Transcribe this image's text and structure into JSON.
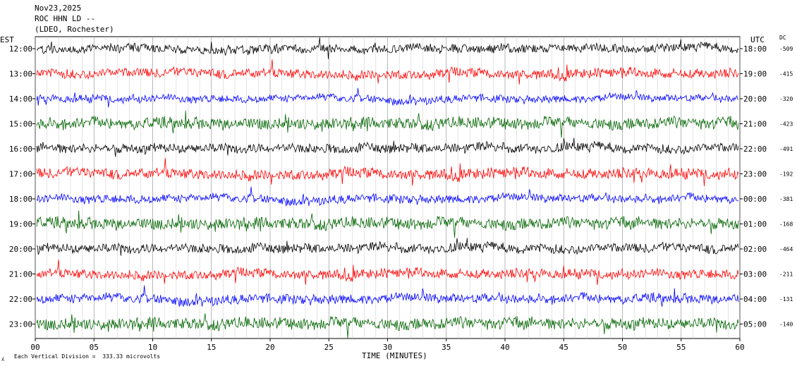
{
  "header": {
    "date": "Nov23,2025",
    "station": "ROC HHN LD --",
    "network": "(LDEO, Rochester)"
  },
  "left_axis_label": "EST",
  "right_axis_label": "UTC",
  "dc_label": "DC",
  "footer": {
    "xlabel": "TIME (MINUTES)",
    "scale_text": "Each Vertical Division =  333.33 microvolts",
    "corner_mark": "ʎ"
  },
  "chart_data": {
    "type": "line",
    "title": "",
    "xlabel": "TIME (MINUTES)",
    "ylabel": "",
    "x_range": [
      0,
      60
    ],
    "x_ticks": [
      "00",
      "05",
      "10",
      "15",
      "20",
      "25",
      "30",
      "35",
      "40",
      "45",
      "50",
      "55",
      "60"
    ],
    "trace_colors": [
      "#000000",
      "#ff0000",
      "#0000ff",
      "#006400"
    ],
    "series": [
      {
        "est": "12:00",
        "utc": "18:00",
        "dc": "-509",
        "amplitude": 8
      },
      {
        "est": "13:00",
        "utc": "19:00",
        "dc": "-415",
        "amplitude": 9
      },
      {
        "est": "14:00",
        "utc": "20:00",
        "dc": "-320",
        "amplitude": 7
      },
      {
        "est": "15:00",
        "utc": "21:00",
        "dc": "-423",
        "amplitude": 11
      },
      {
        "est": "16:00",
        "utc": "22:00",
        "dc": "-491",
        "amplitude": 9
      },
      {
        "est": "17:00",
        "utc": "23:00",
        "dc": "-192",
        "amplitude": 10
      },
      {
        "est": "18:00",
        "utc": "00:00",
        "dc": "-381",
        "amplitude": 8
      },
      {
        "est": "19:00",
        "utc": "01:00",
        "dc": "-168",
        "amplitude": 11
      },
      {
        "est": "20:00",
        "utc": "02:00",
        "dc": "-464",
        "amplitude": 9
      },
      {
        "est": "21:00",
        "utc": "03:00",
        "dc": "-211",
        "amplitude": 9
      },
      {
        "est": "22:00",
        "utc": "04:00",
        "dc": "-131",
        "amplitude": 9
      },
      {
        "est": "23:00",
        "utc": "05:00",
        "dc": "-140",
        "amplitude": 11
      }
    ]
  }
}
